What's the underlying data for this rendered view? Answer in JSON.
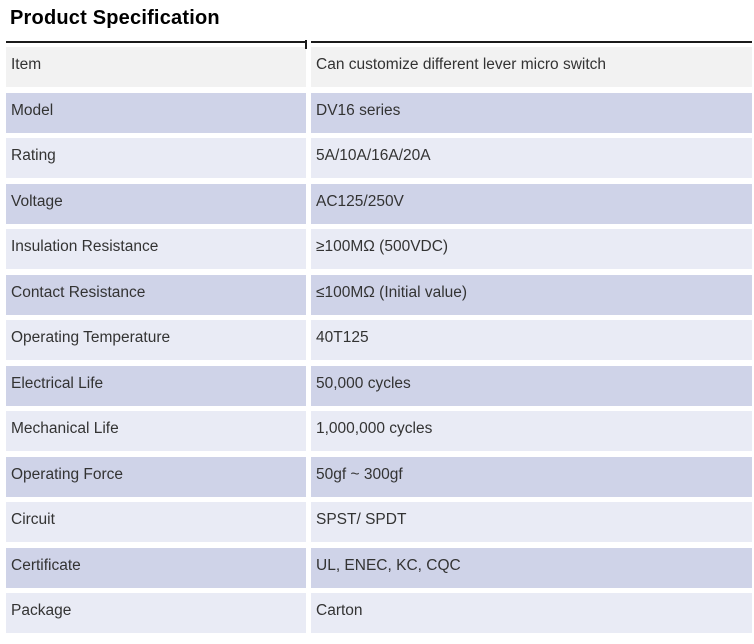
{
  "page": {
    "title": "Product Specification"
  },
  "table": {
    "colors": {
      "gray": "#f2f2f2",
      "dark": "#cfd3e8",
      "light": "#e9ebf5",
      "border": "#1a1a1a",
      "text": "#333333"
    },
    "rows": [
      {
        "label": "Item",
        "value": "Can customize different lever micro switch",
        "shade": "gray"
      },
      {
        "label": "Model",
        "value": "DV16 series",
        "shade": "dark"
      },
      {
        "label": "Rating",
        "value": "5A/10A/16A/20A",
        "shade": "light"
      },
      {
        "label": "Voltage",
        "value": "AC125/250V",
        "shade": "dark"
      },
      {
        "label": "Insulation Resistance",
        "value": "≥100MΩ (500VDC)",
        "shade": "light"
      },
      {
        "label": "Contact Resistance",
        "value": "≤100MΩ (Initial value)",
        "shade": "dark"
      },
      {
        "label": "Operating Temperature",
        "value": "40T125",
        "shade": "light"
      },
      {
        "label": "Electrical Life",
        "value": "50,000 cycles",
        "shade": "dark"
      },
      {
        "label": "Mechanical Life",
        "value": "1,000,000 cycles",
        "shade": "light"
      },
      {
        "label": "Operating Force",
        "value": "50gf ~ 300gf",
        "shade": "dark"
      },
      {
        "label": "Circuit",
        "value": "SPST/ SPDT",
        "shade": "light"
      },
      {
        "label": "Certificate",
        "value": "UL, ENEC, KC, CQC",
        "shade": "dark"
      },
      {
        "label": "Package",
        "value": "Carton",
        "shade": "light"
      }
    ]
  }
}
